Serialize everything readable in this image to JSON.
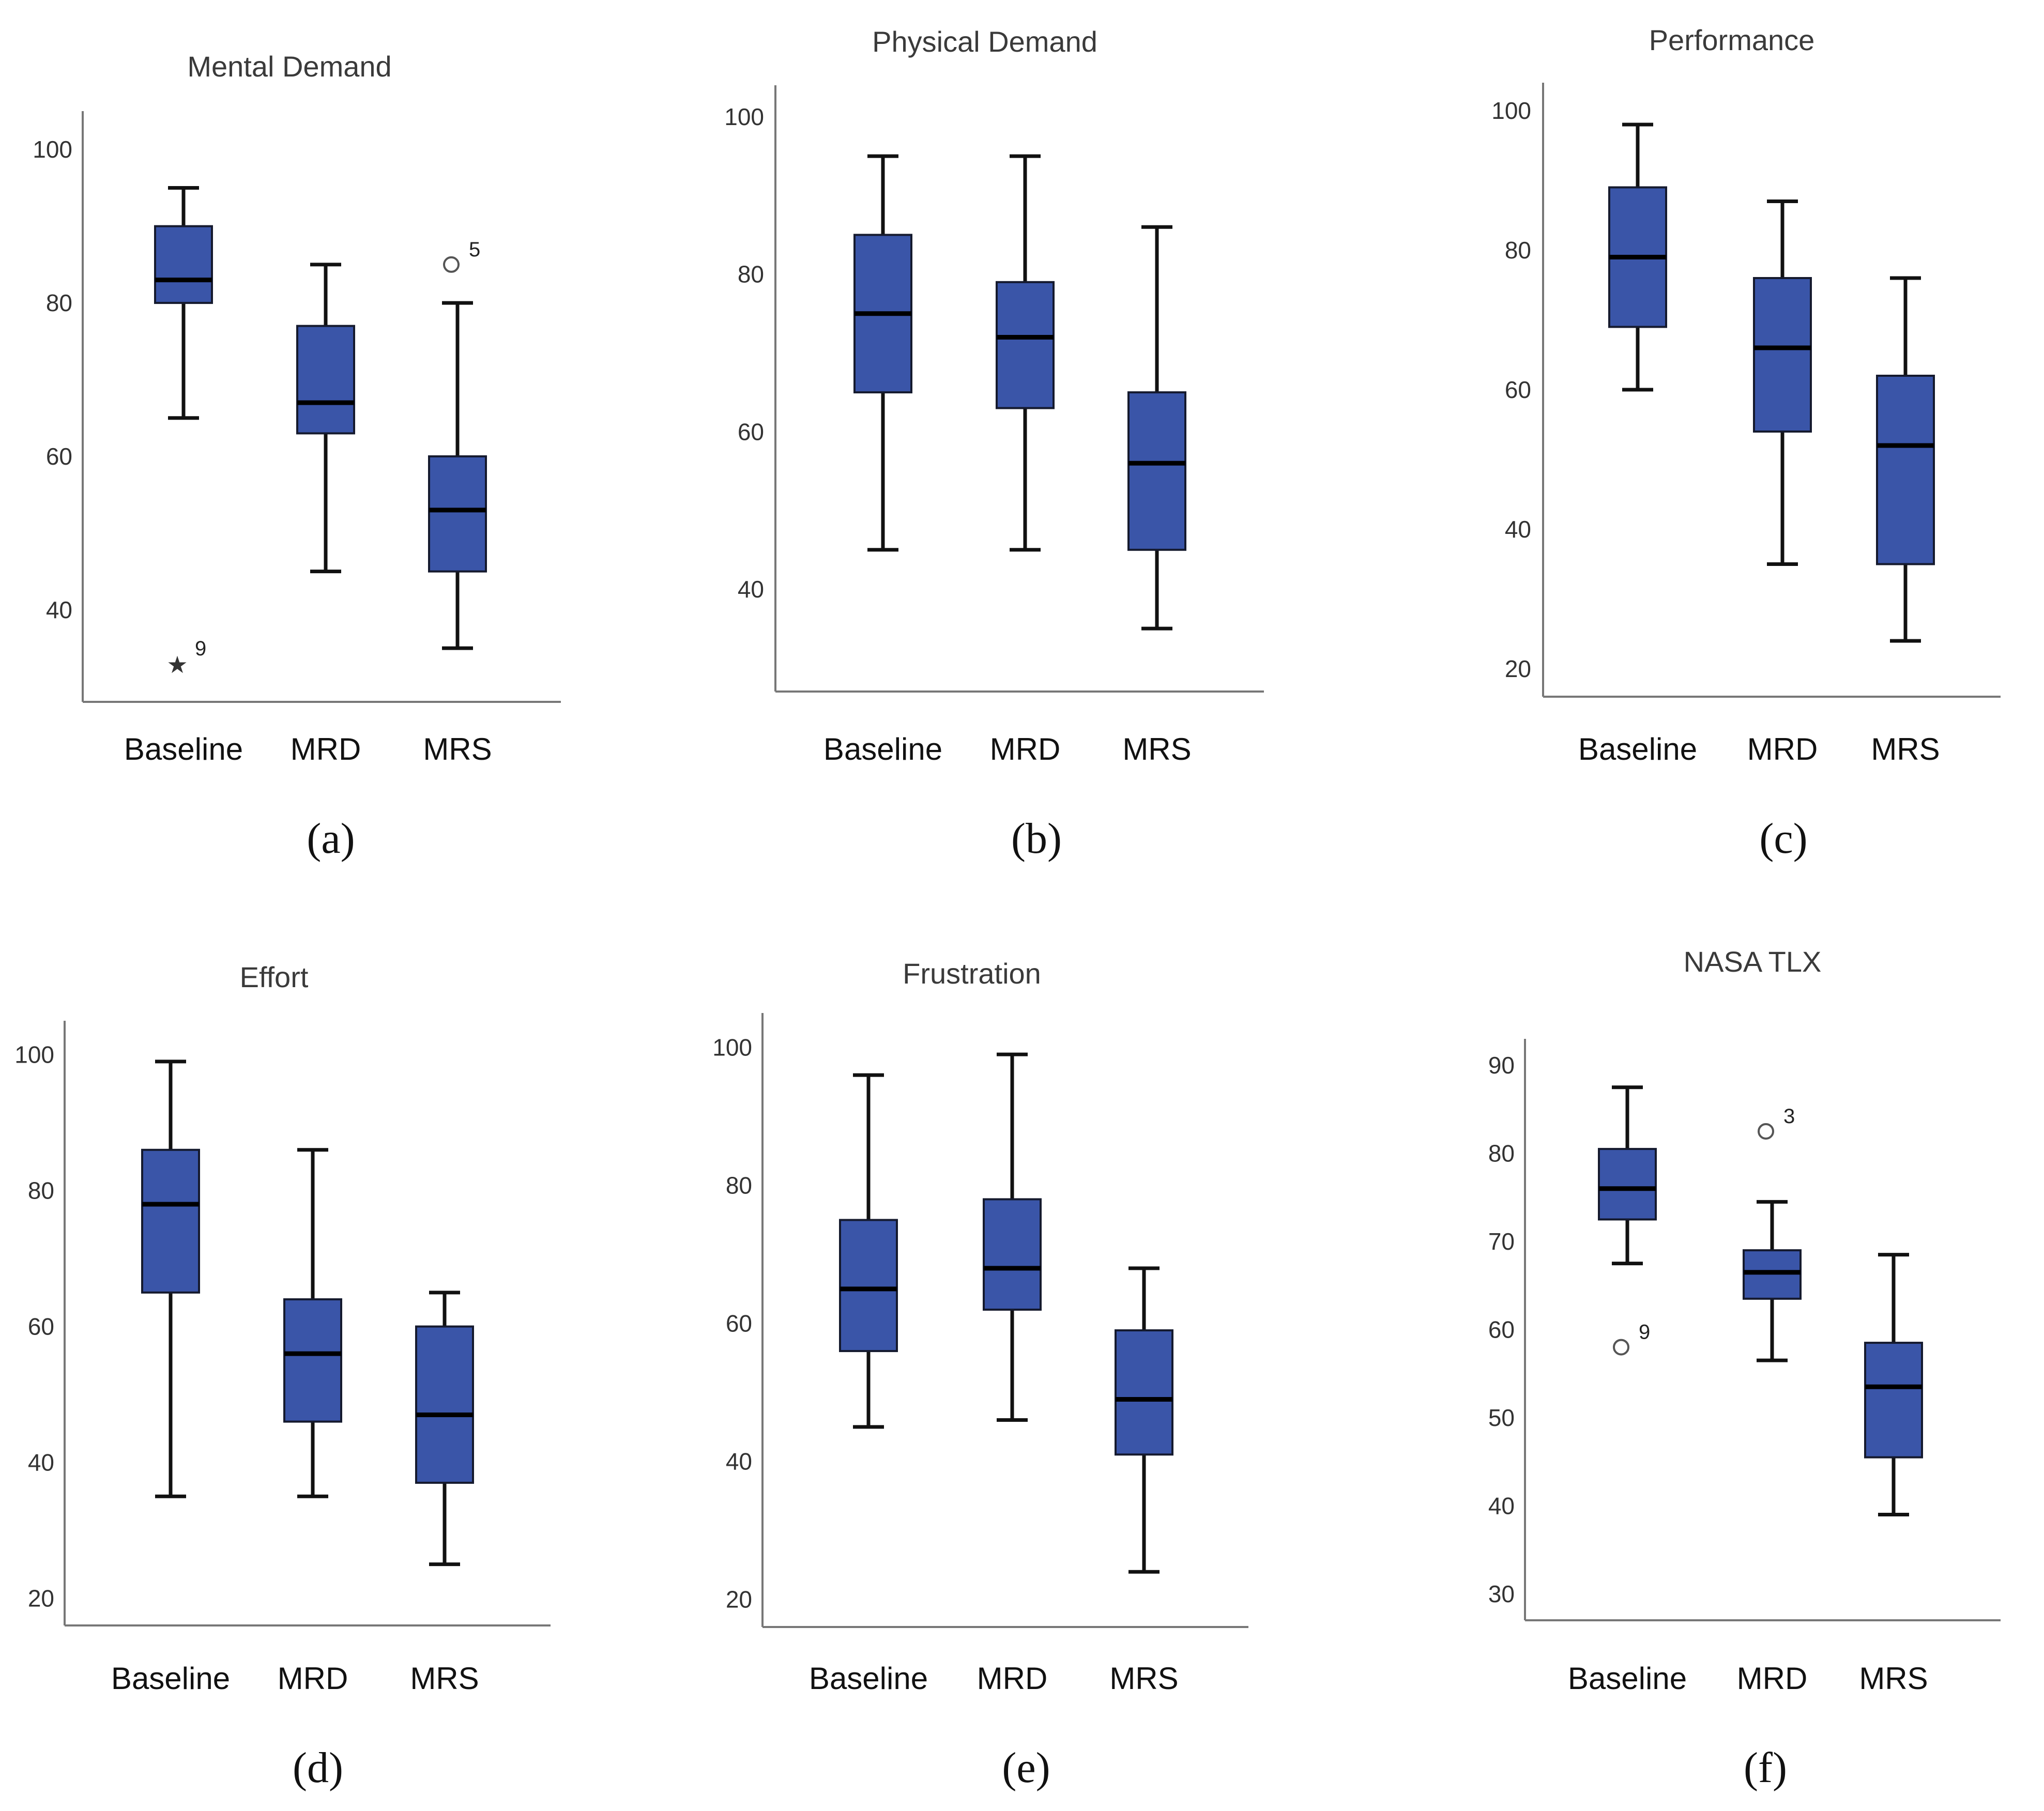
{
  "colors": {
    "box_fill": "#3a55a8",
    "box_edge": "#151a2e",
    "axis": "#777777",
    "whisker": "#111111"
  },
  "chart_data": [
    {
      "type": "box",
      "title": "Mental Demand",
      "panel_label": "(a)",
      "categories": [
        "Baseline",
        "MRD",
        "MRS"
      ],
      "yticks": [
        40,
        60,
        80,
        100
      ],
      "ylim": [
        28,
        105
      ],
      "boxes": [
        {
          "min": 65,
          "q1": 80,
          "median": 83,
          "q3": 90,
          "max": 95
        },
        {
          "min": 45,
          "q1": 63,
          "median": 67,
          "q3": 77,
          "max": 85
        },
        {
          "min": 35,
          "q1": 45,
          "median": 53,
          "q3": 60,
          "max": 80
        }
      ],
      "outliers": [
        {
          "category": 0,
          "value": 33,
          "label": "9",
          "marker": "star"
        },
        {
          "category": 2,
          "value": 85,
          "label": "5",
          "marker": "circle"
        }
      ]
    },
    {
      "type": "box",
      "title": "Physical Demand",
      "panel_label": "(b)",
      "categories": [
        "Baseline",
        "MRD",
        "MRS"
      ],
      "yticks": [
        40,
        60,
        80,
        100
      ],
      "ylim": [
        27,
        104
      ],
      "boxes": [
        {
          "min": 45,
          "q1": 65,
          "median": 75,
          "q3": 85,
          "max": 95
        },
        {
          "min": 45,
          "q1": 63,
          "median": 72,
          "q3": 79,
          "max": 95
        },
        {
          "min": 35,
          "q1": 45,
          "median": 56,
          "q3": 65,
          "max": 86
        }
      ],
      "outliers": []
    },
    {
      "type": "box",
      "title": "Performance",
      "panel_label": "(c)",
      "categories": [
        "Baseline",
        "MRD",
        "MRS"
      ],
      "yticks": [
        20,
        40,
        60,
        80,
        100
      ],
      "ylim": [
        16,
        104
      ],
      "boxes": [
        {
          "min": 60,
          "q1": 69,
          "median": 79,
          "q3": 89,
          "max": 98
        },
        {
          "min": 35,
          "q1": 54,
          "median": 66,
          "q3": 76,
          "max": 87
        },
        {
          "min": 24,
          "q1": 35,
          "median": 52,
          "q3": 62,
          "max": 76
        }
      ],
      "outliers": []
    },
    {
      "type": "box",
      "title": "Effort",
      "panel_label": "(d)",
      "categories": [
        "Baseline",
        "MRD",
        "MRS"
      ],
      "yticks": [
        20,
        40,
        60,
        80,
        100
      ],
      "ylim": [
        16,
        105
      ],
      "boxes": [
        {
          "min": 35,
          "q1": 65,
          "median": 78,
          "q3": 86,
          "max": 99
        },
        {
          "min": 35,
          "q1": 46,
          "median": 56,
          "q3": 64,
          "max": 86
        },
        {
          "min": 25,
          "q1": 37,
          "median": 47,
          "q3": 60,
          "max": 65
        }
      ],
      "outliers": []
    },
    {
      "type": "box",
      "title": "Frustration",
      "panel_label": "(e)",
      "categories": [
        "Baseline",
        "MRD",
        "MRS"
      ],
      "yticks": [
        20,
        40,
        60,
        80,
        100
      ],
      "ylim": [
        16,
        105
      ],
      "boxes": [
        {
          "min": 45,
          "q1": 56,
          "median": 65,
          "q3": 75,
          "max": 96
        },
        {
          "min": 46,
          "q1": 62,
          "median": 68,
          "q3": 78,
          "max": 99
        },
        {
          "min": 24,
          "q1": 41,
          "median": 49,
          "q3": 59,
          "max": 68
        }
      ],
      "outliers": []
    },
    {
      "type": "box",
      "title": "NASA TLX",
      "panel_label": "(f)",
      "categories": [
        "Baseline",
        "MRD",
        "MRS"
      ],
      "yticks": [
        30,
        40,
        50,
        60,
        70,
        80,
        90
      ],
      "ylim": [
        27,
        93
      ],
      "boxes": [
        {
          "min": 67.5,
          "q1": 72.5,
          "median": 76,
          "q3": 80.5,
          "max": 87.5
        },
        {
          "min": 56.5,
          "q1": 63.5,
          "median": 66.5,
          "q3": 69,
          "max": 74.5
        },
        {
          "min": 39,
          "q1": 45.5,
          "median": 53.5,
          "q3": 58.5,
          "max": 68.5
        }
      ],
      "outliers": [
        {
          "category": 0,
          "value": 58,
          "label": "9",
          "marker": "circle"
        },
        {
          "category": 1,
          "value": 82.5,
          "label": "3",
          "marker": "circle"
        }
      ]
    }
  ]
}
